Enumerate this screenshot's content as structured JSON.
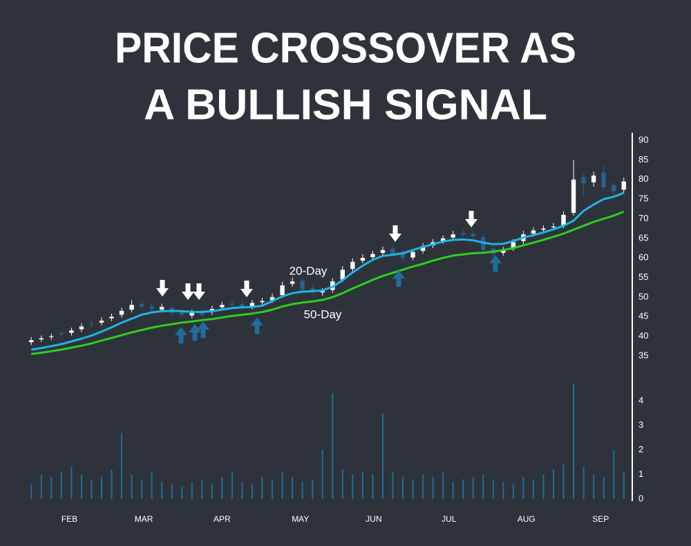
{
  "chart_data": {
    "type": "candlestick",
    "title": [
      "PRICE CROSSOVER AS",
      "A BULLISH SIGNAL"
    ],
    "x": [
      0,
      1,
      2,
      3,
      4,
      5,
      6,
      7,
      8,
      9,
      10,
      11,
      12,
      13,
      14,
      15,
      16,
      17,
      18,
      19,
      20,
      21,
      22,
      23,
      24,
      25,
      26,
      27,
      28,
      29,
      30,
      31,
      32,
      33,
      34,
      35,
      36,
      37,
      38,
      39,
      40,
      41,
      42,
      43,
      44,
      45,
      46,
      47,
      48,
      49,
      50,
      51,
      52,
      53,
      54,
      55,
      56,
      57,
      58,
      59
    ],
    "xlim": [
      -0.5,
      59.5
    ],
    "xticks": [
      {
        "value": 3.8,
        "label": "FEB"
      },
      {
        "value": 11.2,
        "label": "MAR"
      },
      {
        "value": 19,
        "label": "APR"
      },
      {
        "value": 26.8,
        "label": "MAY"
      },
      {
        "value": 34.1,
        "label": "JUN"
      },
      {
        "value": 41.6,
        "label": "JUL"
      },
      {
        "value": 49.3,
        "label": "AUG"
      },
      {
        "value": 56.7,
        "label": "SEP"
      }
    ],
    "open": [
      38.5,
      39.2,
      39.8,
      40.8,
      40.9,
      41.8,
      43.2,
      43.5,
      44.6,
      45.5,
      46.8,
      48.2,
      47.6,
      46.8,
      47.2,
      46.2,
      45.3,
      46.3,
      46.2,
      47.4,
      48.3,
      48.2,
      47.6,
      48.7,
      49.2,
      50.5,
      53.4,
      54.2,
      52.3,
      51.2,
      51.8,
      54.5,
      57.2,
      59.3,
      60.2,
      61.3,
      62.4,
      61.2,
      60.1,
      61.8,
      63.2,
      64.3,
      65.2,
      66.4,
      66.2,
      65.3,
      62.4,
      61.3,
      62.5,
      64.3,
      66.2,
      67.2,
      67.8,
      68.3,
      71.5,
      80.6,
      79.3,
      81.8,
      78.6,
      77.4
    ],
    "high": [
      39.8,
      40.2,
      40.7,
      41.5,
      42.2,
      43.3,
      44,
      44.8,
      45.8,
      47.3,
      49.2,
      48.9,
      48.4,
      48.3,
      47.9,
      47,
      46.8,
      47.1,
      47.8,
      48.8,
      49.1,
      49,
      49.3,
      49.8,
      50.9,
      53.9,
      55,
      54.9,
      53,
      52.3,
      54.8,
      57.9,
      59.9,
      60.9,
      61.8,
      62.9,
      63.2,
      61.9,
      62.3,
      63.8,
      64.8,
      65.8,
      66.9,
      67.2,
      67,
      66,
      63.1,
      62.8,
      64.8,
      66.9,
      67.8,
      68.3,
      68.9,
      71.9,
      85,
      81.5,
      82,
      83.5,
      79.4,
      80.5
    ],
    "low": [
      37.8,
      38.6,
      39.1,
      39.8,
      40.2,
      41.1,
      42.3,
      42.8,
      43.9,
      44.8,
      46.1,
      46.7,
      46.2,
      46.1,
      45.2,
      44.7,
      44.6,
      44.8,
      45.5,
      46.7,
      47.2,
      46.8,
      46.9,
      48,
      48.5,
      49.8,
      52.6,
      51.2,
      50.7,
      50.4,
      51.1,
      53.8,
      56.5,
      58.6,
      59.5,
      60.6,
      60.2,
      59,
      59.4,
      61.1,
      62.5,
      63.6,
      64.5,
      65.3,
      64.7,
      61.2,
      60.2,
      60.6,
      61.8,
      63.6,
      65.5,
      66.4,
      67,
      67.6,
      70.8,
      75.5,
      78.2,
      77.2,
      75.5,
      76.6
    ],
    "close": [
      39,
      39.5,
      40,
      40.5,
      41.5,
      42.5,
      43,
      44,
      45,
      46.5,
      48,
      47.5,
      47,
      47.5,
      46,
      45.5,
      46,
      45.5,
      47,
      48,
      48,
      47.5,
      48.5,
      49,
      50,
      53,
      54,
      52,
      51.5,
      51.5,
      54,
      57,
      59,
      60,
      61,
      62,
      61,
      60,
      61.5,
      63,
      64,
      65,
      66,
      66,
      65.5,
      62,
      61,
      62,
      64,
      66,
      67,
      67.5,
      68,
      71,
      80,
      79,
      81,
      78,
      77,
      79.5
    ],
    "up_color": "#ffffff",
    "down_color": "#2a5f8f",
    "series": [
      {
        "name": "20-Day",
        "color": "#1fb5e3",
        "values": [
          36.6,
          37,
          37.5,
          38,
          38.7,
          39.4,
          40.2,
          41.2,
          42.3,
          43.5,
          44.5,
          45.5,
          46.1,
          46.4,
          46.5,
          46.4,
          46.2,
          46.2,
          46.4,
          46.8,
          47.2,
          47.4,
          47.5,
          47.8,
          49,
          50.2,
          51,
          51.4,
          51.5,
          51.7,
          52.6,
          54.3,
          56.3,
          58,
          59.5,
          60.5,
          60.8,
          61.2,
          62,
          62.8,
          63.5,
          64.2,
          64.6,
          64.7,
          64.5,
          63.9,
          63.5,
          63.6,
          64.3,
          65.2,
          65.8,
          66.5,
          67.3,
          68.2,
          69.5,
          72,
          73.6,
          75,
          75.6,
          76.6
        ]
      },
      {
        "name": "50-Day",
        "color": "#2fcf1c",
        "values": [
          35.5,
          35.8,
          36.2,
          36.6,
          37.1,
          37.6,
          38.2,
          38.9,
          39.6,
          40.3,
          41,
          41.6,
          42.2,
          42.7,
          43.1,
          43.5,
          43.8,
          44.1,
          44.4,
          44.8,
          45.2,
          45.5,
          45.8,
          46.2,
          46.8,
          47.6,
          48.2,
          48.6,
          48.9,
          49.3,
          50,
          51,
          52.2,
          53.3,
          54.4,
          55.4,
          56.2,
          57,
          57.8,
          58.5,
          59.3,
          60,
          60.6,
          60.9,
          61.2,
          61.3,
          61.6,
          62,
          62.5,
          63.2,
          63.9,
          64.6,
          65.4,
          66.2,
          67.2,
          68.2,
          69.2,
          70,
          70.8,
          71.8
        ]
      }
    ],
    "ylim": [
      33,
      92
    ],
    "yticks": [
      35,
      40,
      45,
      50,
      55,
      60,
      65,
      70,
      75,
      80,
      85,
      90
    ],
    "volume": [
      0.6,
      1,
      0.9,
      1.1,
      1.3,
      1,
      0.8,
      0.9,
      1.2,
      2.7,
      1,
      0.8,
      1.1,
      0.7,
      0.6,
      0.5,
      0.7,
      0.8,
      0.6,
      0.9,
      1.1,
      0.7,
      0.6,
      0.9,
      0.8,
      1.1,
      0.9,
      0.7,
      0.8,
      2,
      4.3,
      1.2,
      1,
      1.1,
      1,
      3.5,
      1.1,
      0.9,
      0.8,
      1,
      0.9,
      1.1,
      0.7,
      0.8,
      0.9,
      1,
      0.8,
      0.7,
      0.6,
      0.9,
      0.8,
      1,
      1.2,
      1.4,
      4.7,
      1.3,
      1,
      0.9,
      2,
      1.1
    ],
    "volume_color": "#1f6d99",
    "y2lim": [
      0,
      5
    ],
    "y2ticks": [
      0,
      1,
      2,
      3,
      4
    ],
    "grid": false
  }
}
